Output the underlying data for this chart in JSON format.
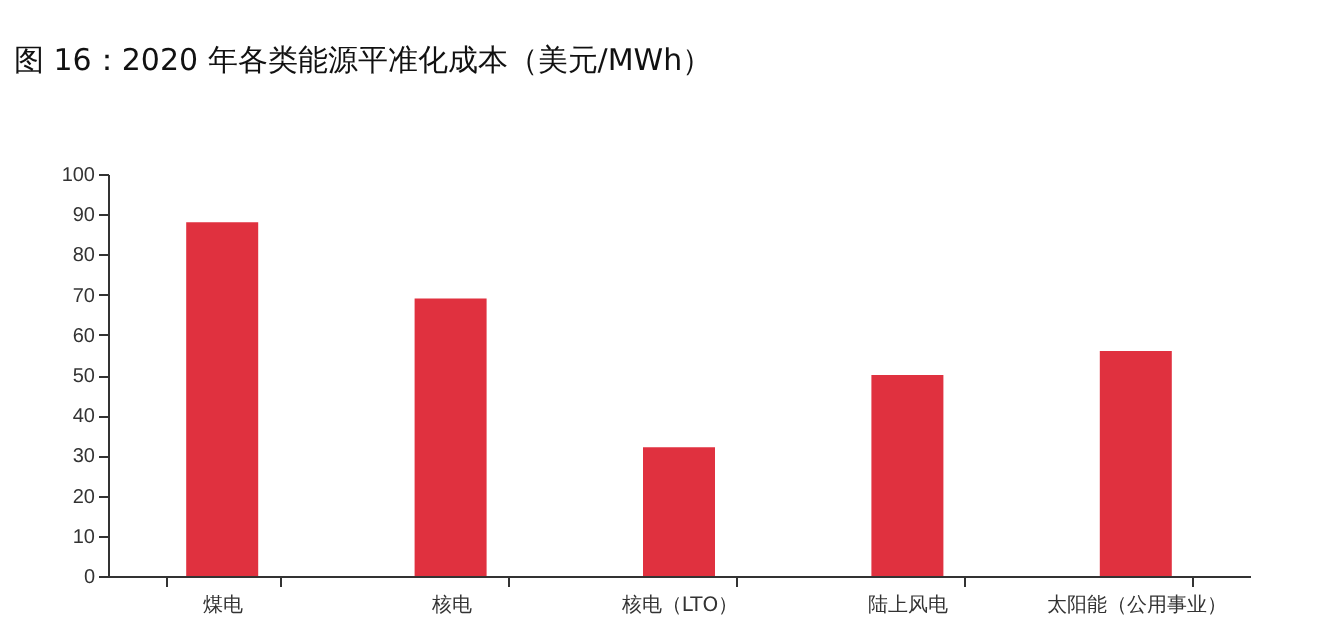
{
  "chart_data": {
    "type": "bar",
    "title": "图 16：2020 年各类能源平准化成本（美元/MWh）",
    "categories": [
      "煤电",
      "核电",
      "核电（LTO）",
      "陆上风电",
      "太阳能（公用事业）"
    ],
    "values": [
      88,
      69,
      32,
      50,
      56
    ],
    "color": "#e0313f",
    "ylim": [
      0,
      100
    ],
    "yticks": [
      0,
      10,
      20,
      30,
      40,
      50,
      60,
      70,
      80,
      90,
      100
    ],
    "grid": false
  }
}
